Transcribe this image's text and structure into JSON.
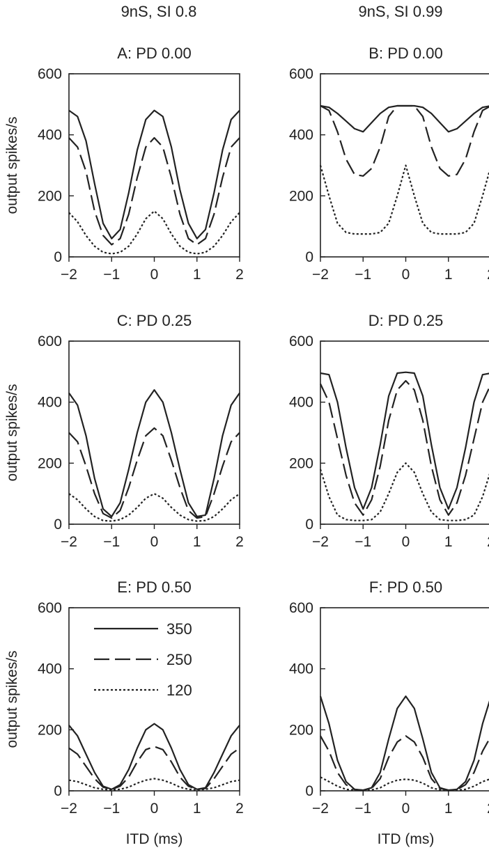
{
  "column_headers": [
    "9nS, SI 0.8",
    "9nS, SI 0.99"
  ],
  "shared_axes": {
    "ylabel": "output spikes/s",
    "xlabel": "ITD (ms)",
    "x_ticks": [
      "−2",
      "−1",
      "0",
      "1",
      "2"
    ],
    "y_ticks": [
      "0",
      "200",
      "400",
      "600"
    ]
  },
  "legend": {
    "location": "panel E, upper-left",
    "entries": [
      {
        "label": "350",
        "style": "solid"
      },
      {
        "label": "250",
        "style": "long-dash"
      },
      {
        "label": "120",
        "style": "dotted"
      }
    ]
  },
  "chart_data": [
    {
      "type": "line",
      "panel": "A",
      "title": "A:  PD 0.00",
      "xlim": [
        -2,
        2
      ],
      "ylim": [
        0,
        600
      ],
      "x": [
        -2,
        -1.8,
        -1.6,
        -1.4,
        -1.2,
        -1,
        -0.8,
        -0.6,
        -0.4,
        -0.2,
        0,
        0.2,
        0.4,
        0.6,
        0.8,
        1,
        1.2,
        1.4,
        1.6,
        1.8,
        2
      ],
      "series": [
        {
          "name": "350",
          "style": "solid",
          "values": [
            480,
            460,
            380,
            240,
            110,
            60,
            90,
            210,
            350,
            450,
            480,
            460,
            360,
            220,
            110,
            60,
            90,
            210,
            350,
            450,
            480
          ]
        },
        {
          "name": "250",
          "style": "long-dash",
          "values": [
            390,
            360,
            280,
            150,
            70,
            40,
            60,
            140,
            260,
            360,
            390,
            360,
            260,
            140,
            60,
            40,
            60,
            140,
            260,
            360,
            390
          ]
        },
        {
          "name": "120",
          "style": "dotted",
          "values": [
            145,
            115,
            70,
            35,
            15,
            10,
            15,
            35,
            75,
            125,
            150,
            125,
            75,
            35,
            15,
            10,
            15,
            35,
            70,
            115,
            145
          ]
        }
      ]
    },
    {
      "type": "line",
      "panel": "B",
      "title": "B:   PD 0.00",
      "xlim": [
        -2,
        2
      ],
      "ylim": [
        0,
        600
      ],
      "x": [
        -2,
        -1.8,
        -1.6,
        -1.4,
        -1.2,
        -1,
        -0.8,
        -0.6,
        -0.4,
        -0.2,
        0,
        0.2,
        0.4,
        0.6,
        0.8,
        1,
        1.2,
        1.4,
        1.6,
        1.8,
        2
      ],
      "series": [
        {
          "name": "350",
          "style": "solid",
          "values": [
            495,
            490,
            470,
            445,
            420,
            410,
            440,
            470,
            490,
            495,
            495,
            495,
            490,
            470,
            440,
            410,
            420,
            445,
            470,
            490,
            495
          ]
        },
        {
          "name": "250",
          "style": "long-dash",
          "values": [
            495,
            480,
            410,
            320,
            270,
            265,
            290,
            360,
            460,
            495,
            495,
            495,
            460,
            360,
            290,
            265,
            270,
            320,
            410,
            480,
            495
          ]
        },
        {
          "name": "120",
          "style": "dotted",
          "values": [
            300,
            200,
            110,
            80,
            75,
            75,
            75,
            80,
            110,
            200,
            300,
            200,
            110,
            80,
            75,
            75,
            75,
            80,
            110,
            200,
            300
          ]
        }
      ]
    },
    {
      "type": "line",
      "panel": "C",
      "title": "C:   PD 0.25",
      "xlim": [
        -2,
        2
      ],
      "ylim": [
        0,
        600
      ],
      "x": [
        -2,
        -1.8,
        -1.6,
        -1.4,
        -1.2,
        -1,
        -0.8,
        -0.6,
        -0.4,
        -0.2,
        0,
        0.2,
        0.4,
        0.6,
        0.8,
        1,
        1.2,
        1.4,
        1.6,
        1.8,
        2
      ],
      "series": [
        {
          "name": "350",
          "style": "solid",
          "values": [
            430,
            390,
            290,
            150,
            50,
            25,
            70,
            180,
            300,
            400,
            440,
            400,
            300,
            180,
            70,
            25,
            30,
            150,
            290,
            390,
            430
          ]
        },
        {
          "name": "250",
          "style": "long-dash",
          "values": [
            300,
            270,
            190,
            100,
            35,
            20,
            45,
            120,
            210,
            290,
            315,
            290,
            210,
            120,
            45,
            20,
            25,
            100,
            190,
            270,
            300
          ]
        },
        {
          "name": "120",
          "style": "dotted",
          "values": [
            100,
            80,
            50,
            25,
            12,
            10,
            15,
            30,
            55,
            85,
            100,
            85,
            55,
            30,
            15,
            10,
            12,
            25,
            50,
            80,
            100
          ]
        }
      ]
    },
    {
      "type": "line",
      "panel": "D",
      "title": "D:   PD 0.25",
      "xlim": [
        -2,
        2
      ],
      "ylim": [
        0,
        600
      ],
      "x": [
        -2,
        -1.8,
        -1.6,
        -1.4,
        -1.2,
        -1,
        -0.8,
        -0.6,
        -0.4,
        -0.2,
        0,
        0.2,
        0.4,
        0.6,
        0.8,
        1,
        1.2,
        1.4,
        1.6,
        1.8,
        2
      ],
      "series": [
        {
          "name": "350",
          "style": "solid",
          "values": [
            495,
            490,
            400,
            250,
            120,
            50,
            120,
            260,
            420,
            495,
            498,
            495,
            420,
            260,
            120,
            50,
            120,
            250,
            400,
            490,
            495
          ]
        },
        {
          "name": "250",
          "style": "long-dash",
          "values": [
            460,
            400,
            280,
            160,
            70,
            30,
            80,
            190,
            340,
            440,
            470,
            440,
            340,
            190,
            80,
            30,
            70,
            160,
            280,
            400,
            460
          ]
        },
        {
          "name": "120",
          "style": "dotted",
          "values": [
            180,
            90,
            30,
            15,
            12,
            12,
            15,
            40,
            100,
            170,
            200,
            170,
            100,
            40,
            15,
            12,
            12,
            15,
            30,
            90,
            180
          ]
        }
      ]
    },
    {
      "type": "line",
      "panel": "E",
      "title": "E:   PD 0.50",
      "xlim": [
        -2,
        2
      ],
      "ylim": [
        0,
        600
      ],
      "x": [
        -2,
        -1.8,
        -1.6,
        -1.4,
        -1.2,
        -1,
        -0.8,
        -0.6,
        -0.4,
        -0.2,
        0,
        0.2,
        0.4,
        0.6,
        0.8,
        1,
        1.2,
        1.4,
        1.6,
        1.8,
        2
      ],
      "series": [
        {
          "name": "350",
          "style": "solid",
          "values": [
            215,
            180,
            120,
            60,
            15,
            5,
            20,
            70,
            140,
            200,
            220,
            200,
            140,
            70,
            20,
            5,
            10,
            60,
            120,
            180,
            215
          ]
        },
        {
          "name": "250",
          "style": "long-dash",
          "values": [
            140,
            120,
            80,
            40,
            12,
            5,
            15,
            45,
            95,
            135,
            145,
            135,
            95,
            45,
            15,
            5,
            8,
            40,
            80,
            120,
            140
          ]
        },
        {
          "name": "120",
          "style": "dotted",
          "values": [
            35,
            30,
            20,
            10,
            5,
            3,
            5,
            12,
            25,
            35,
            40,
            35,
            25,
            12,
            5,
            3,
            5,
            10,
            20,
            30,
            35
          ]
        }
      ]
    },
    {
      "type": "line",
      "panel": "F",
      "title": "F:   PD 0.50",
      "xlim": [
        -2,
        2
      ],
      "ylim": [
        0,
        600
      ],
      "x": [
        -2,
        -1.8,
        -1.6,
        -1.4,
        -1.2,
        -1,
        -0.8,
        -0.6,
        -0.4,
        -0.2,
        0,
        0.2,
        0.4,
        0.6,
        0.8,
        1,
        1.2,
        1.4,
        1.6,
        1.8,
        2
      ],
      "series": [
        {
          "name": "350",
          "style": "solid",
          "values": [
            310,
            220,
            100,
            30,
            5,
            2,
            10,
            60,
            170,
            270,
            310,
            270,
            170,
            60,
            10,
            2,
            5,
            30,
            100,
            220,
            310
          ]
        },
        {
          "name": "250",
          "style": "long-dash",
          "values": [
            180,
            130,
            60,
            20,
            4,
            2,
            8,
            40,
            110,
            160,
            180,
            160,
            110,
            40,
            8,
            2,
            4,
            20,
            60,
            130,
            180
          ]
        },
        {
          "name": "120",
          "style": "dotted",
          "values": [
            45,
            30,
            15,
            5,
            2,
            1,
            3,
            10,
            25,
            35,
            38,
            35,
            25,
            10,
            3,
            1,
            2,
            5,
            15,
            30,
            40
          ]
        }
      ]
    }
  ]
}
